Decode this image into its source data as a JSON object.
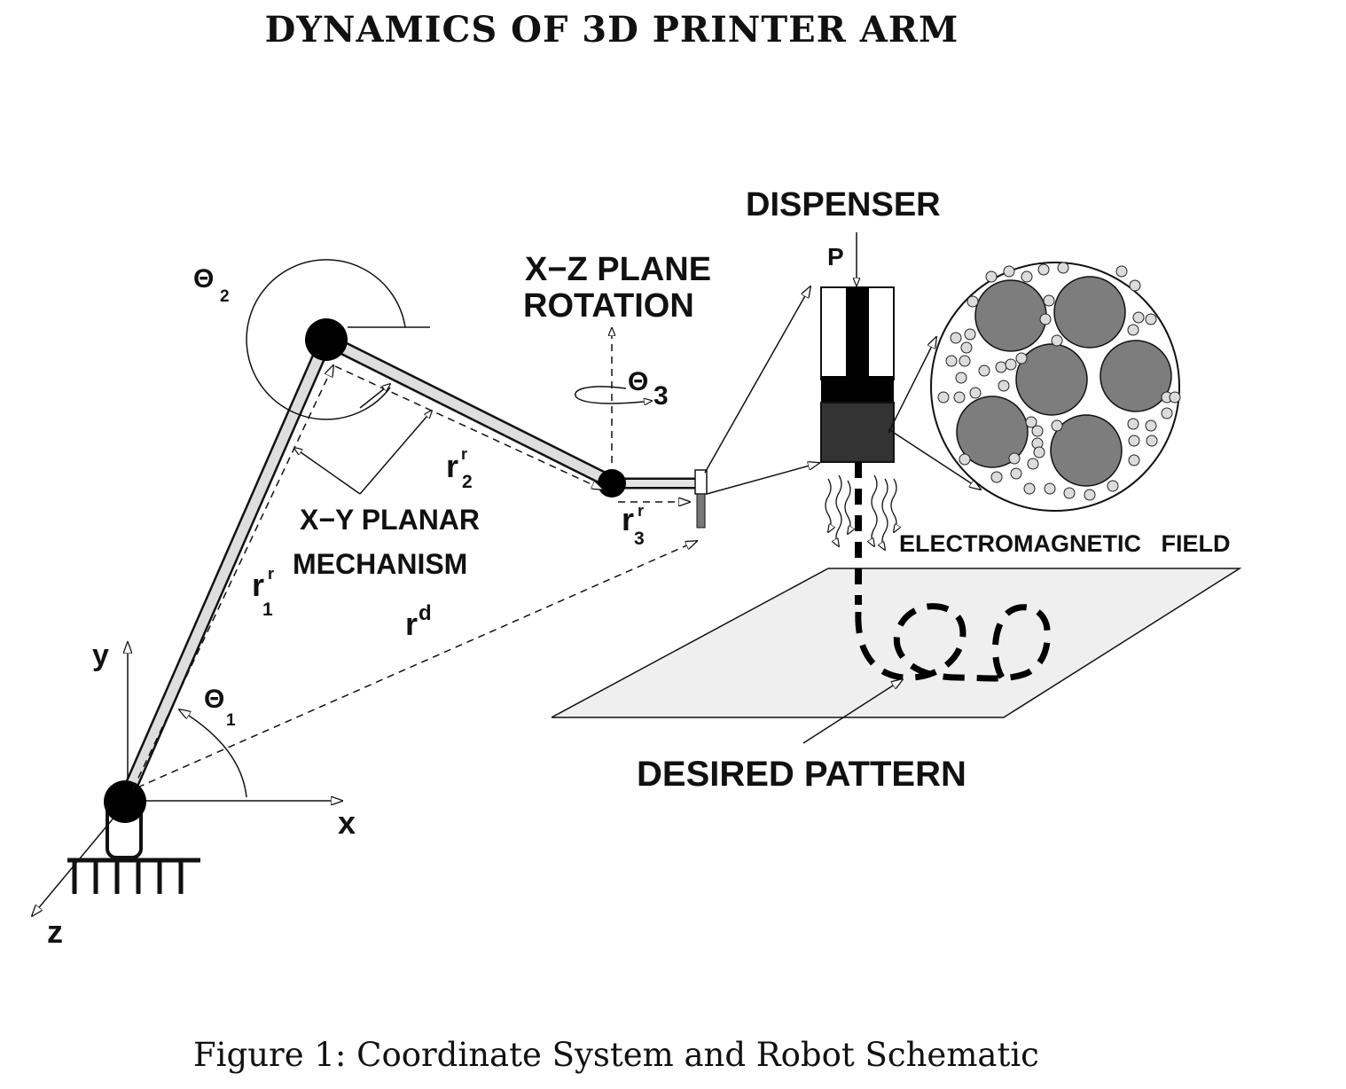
{
  "header": {
    "title": "DYNAMICS OF 3D PRINTER ARM"
  },
  "labels": {
    "theta2": "Θ",
    "theta2_sub": "2",
    "xz_plane_1": "X−Z PLANE",
    "xz_plane_2": "ROTATION",
    "theta3": "Θ",
    "theta3_sub": "3",
    "dispenser": "DISPENSER",
    "pressure": "P",
    "r2": "r",
    "r2_sup": "r",
    "r2_sub": "2",
    "r3": "r",
    "r3_sup": "r",
    "r3_sub": "3",
    "xy_planar_1": "X−Y PLANAR",
    "xy_planar_2": "MECHANISM",
    "r1": "r",
    "r1_sup": "r",
    "r1_sub": "1",
    "rd": "r",
    "rd_sup": "d",
    "theta1": "Θ",
    "theta1_sub": "1",
    "axis_y": "y",
    "axis_x": "x",
    "axis_z": "z",
    "em_field": "ELECTROMAGNETIC   FIELD",
    "desired_pattern": "DESIRED PATTERN"
  },
  "caption": {
    "text": "Figure 1: Coordinate System and Robot Schematic"
  }
}
